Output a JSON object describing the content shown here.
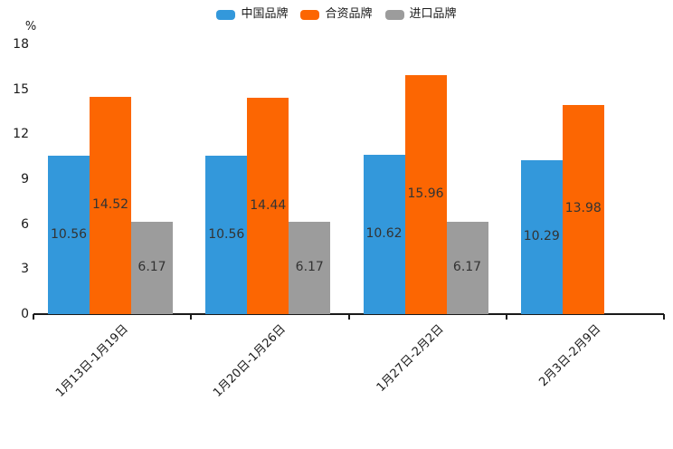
{
  "chart_data": {
    "type": "bar",
    "title": "",
    "categories": [
      "1月13日-1月19日",
      "1月20日-1月26日",
      "1月27日-2月2日",
      "2月3日-2月9日"
    ],
    "series": [
      {
        "name": "中国品牌",
        "color": "#3398db",
        "values": [
          10.56,
          10.56,
          10.62,
          10.29
        ]
      },
      {
        "name": "合资品牌",
        "color": "#fc6602",
        "values": [
          14.52,
          14.44,
          15.96,
          13.98
        ]
      },
      {
        "name": "进口品牌",
        "color": "#9c9c9c",
        "values": [
          6.17,
          6.17,
          6.17,
          null
        ]
      }
    ],
    "xlabel": "",
    "ylabel": "%",
    "yticks": [
      0,
      3,
      6,
      9,
      12,
      15,
      18
    ],
    "ylim": [
      0,
      18
    ],
    "legend_position": "top-center",
    "grid": false,
    "bar_label_color": "#333333",
    "axis_color": "#1a1a1a"
  }
}
